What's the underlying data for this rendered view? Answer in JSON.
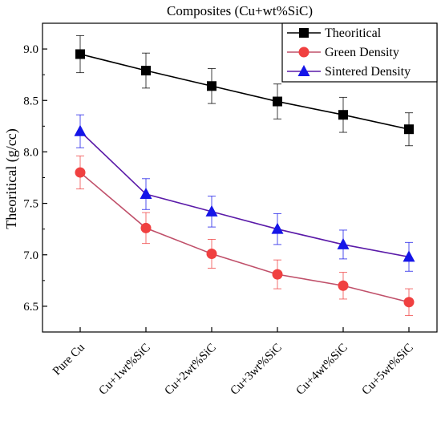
{
  "chart_data": {
    "type": "line",
    "title": "Composites (Cu+wt%SiC)",
    "xlabel": "",
    "ylabel": "Theoritical (g/cc)",
    "categories": [
      "Pure Cu",
      "Cu+1wt%SiC",
      "Cu+2wt%SiC",
      "Cu+3wt%SiC",
      "Cu+4wt%SiC",
      "Cu+5wt%SiC"
    ],
    "ylim": [
      6.25,
      9.25
    ],
    "yticks": [
      "6.5",
      "7.0",
      "7.5",
      "8.0",
      "8.5",
      "9.0"
    ],
    "grid": false,
    "legend_position": "top-right",
    "series": [
      {
        "name": "Theoritical",
        "color": "#000000",
        "marker": "square",
        "values": [
          8.95,
          8.79,
          8.64,
          8.49,
          8.36,
          8.22
        ],
        "errors": [
          0.18,
          0.17,
          0.17,
          0.17,
          0.17,
          0.16
        ]
      },
      {
        "name": "Green Density",
        "color": "#f04040",
        "line_color": "#c0506a",
        "marker": "circle",
        "values": [
          7.8,
          7.26,
          7.01,
          6.81,
          6.7,
          6.54
        ],
        "errors": [
          0.16,
          0.15,
          0.14,
          0.14,
          0.13,
          0.13
        ]
      },
      {
        "name": "Sintered Density",
        "color": "#1515e8",
        "line_color": "#5a1aa8",
        "marker": "triangle",
        "values": [
          8.2,
          7.59,
          7.42,
          7.25,
          7.1,
          6.98
        ],
        "errors": [
          0.16,
          0.15,
          0.15,
          0.15,
          0.14,
          0.14
        ]
      }
    ]
  }
}
